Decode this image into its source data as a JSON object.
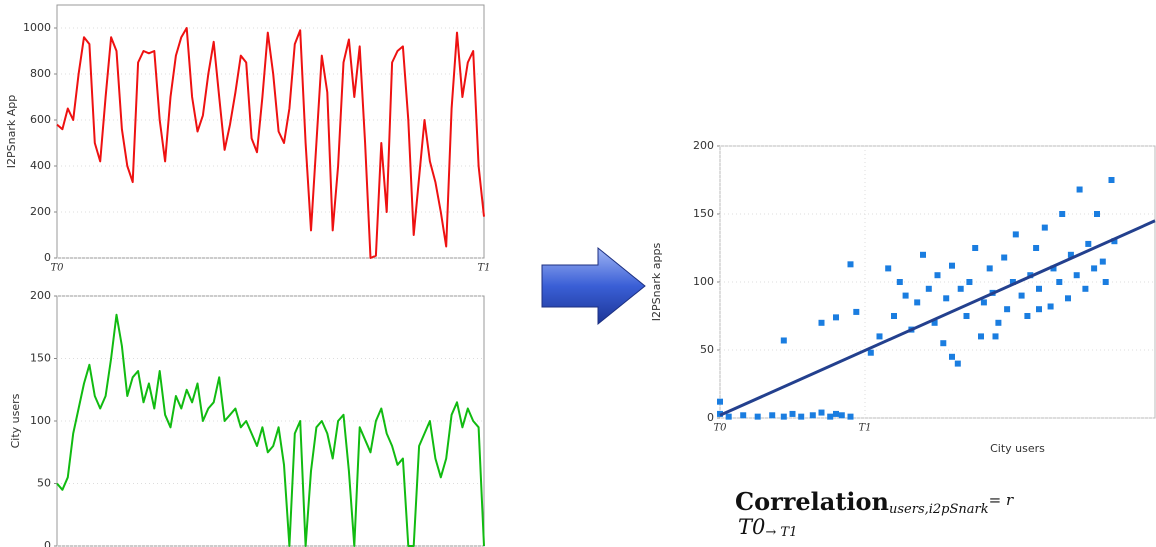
{
  "chart_data": [
    {
      "type": "line",
      "ylabel": "I2PSnark App",
      "color": "#ee1111",
      "ylim": [
        0,
        1100
      ],
      "yticks": [
        0,
        200,
        400,
        600,
        800,
        1000
      ],
      "grid": true,
      "categories": [
        "T0",
        null,
        null,
        null,
        null,
        null,
        null,
        null,
        null,
        null,
        null,
        null,
        null,
        null,
        null,
        null,
        null,
        null,
        null,
        null,
        null,
        null,
        null,
        null,
        null,
        null,
        null,
        null,
        null,
        null,
        null,
        null,
        null,
        null,
        null,
        null,
        null,
        null,
        null,
        null,
        null,
        null,
        null,
        null,
        null,
        null,
        null,
        null,
        null,
        null,
        null,
        null,
        null,
        null,
        null,
        null,
        null,
        null,
        null,
        null,
        null,
        null,
        null,
        null,
        null,
        null,
        null,
        null,
        null,
        null,
        null,
        null,
        null,
        null,
        null,
        null,
        null,
        null,
        null,
        "T1"
      ],
      "values": [
        580,
        560,
        650,
        600,
        800,
        960,
        930,
        500,
        420,
        700,
        960,
        900,
        560,
        400,
        330,
        850,
        900,
        890,
        900,
        600,
        420,
        700,
        880,
        960,
        1000,
        700,
        550,
        620,
        800,
        940,
        700,
        470,
        580,
        720,
        880,
        850,
        520,
        460,
        700,
        980,
        800,
        550,
        500,
        650,
        930,
        990,
        500,
        120,
        500,
        880,
        720,
        120,
        400,
        850,
        950,
        700,
        920,
        500,
        0,
        10,
        500,
        200,
        850,
        900,
        920,
        600,
        100,
        350,
        600,
        420,
        330,
        200,
        50,
        650,
        980,
        700,
        850,
        900,
        400,
        180
      ]
    },
    {
      "type": "line",
      "ylabel": "City users",
      "color": "#11bb11",
      "ylim": [
        0,
        200
      ],
      "yticks": [
        0,
        50,
        100,
        150,
        200
      ],
      "grid": true,
      "categories": [
        "T0",
        null,
        null,
        null,
        null,
        null,
        null,
        null,
        null,
        null,
        null,
        null,
        null,
        null,
        null,
        null,
        null,
        null,
        null,
        null,
        null,
        null,
        null,
        null,
        null,
        null,
        null,
        null,
        null,
        null,
        null,
        null,
        null,
        null,
        null,
        null,
        null,
        null,
        null,
        null,
        null,
        null,
        null,
        null,
        null,
        null,
        null,
        null,
        null,
        null,
        null,
        null,
        null,
        null,
        null,
        null,
        null,
        null,
        null,
        null,
        null,
        null,
        null,
        null,
        null,
        null,
        null,
        null,
        null,
        null,
        null,
        null,
        null,
        null,
        null,
        null,
        null,
        null,
        null,
        "T1"
      ],
      "values": [
        50,
        45,
        55,
        90,
        110,
        130,
        145,
        120,
        110,
        120,
        150,
        185,
        160,
        120,
        135,
        140,
        115,
        130,
        110,
        140,
        105,
        95,
        120,
        110,
        125,
        115,
        130,
        100,
        110,
        115,
        135,
        100,
        105,
        110,
        95,
        100,
        90,
        80,
        95,
        75,
        80,
        95,
        65,
        0,
        90,
        100,
        0,
        60,
        95,
        100,
        90,
        70,
        100,
        105,
        60,
        0,
        95,
        85,
        75,
        100,
        110,
        90,
        80,
        65,
        70,
        0,
        0,
        80,
        90,
        100,
        70,
        55,
        70,
        105,
        115,
        95,
        110,
        100,
        95,
        0
      ]
    },
    {
      "type": "scatter",
      "xlabel": "City users",
      "ylabel": "I2PSnark apps",
      "color": "#1a7de0",
      "xlim": [
        0,
        150
      ],
      "ylim": [
        0,
        200
      ],
      "xticks": [
        {
          "value": 0,
          "label": "T0"
        },
        {
          "value": 50,
          "label": "T1"
        }
      ],
      "yticks": [
        0,
        50,
        100,
        150,
        200
      ],
      "grid": true,
      "x": [
        0,
        0,
        3,
        8,
        13,
        18,
        22,
        25,
        28,
        32,
        35,
        38,
        40,
        42,
        45,
        22,
        35,
        40,
        45,
        47,
        52,
        55,
        58,
        60,
        62,
        64,
        66,
        68,
        70,
        72,
        74,
        75,
        77,
        78,
        80,
        82,
        83,
        85,
        86,
        88,
        90,
        91,
        93,
        94,
        96,
        98,
        99,
        101,
        102,
        104,
        106,
        107,
        109,
        110,
        112,
        114,
        115,
        117,
        118,
        120,
        121,
        123,
        124,
        126,
        127,
        129,
        130,
        132,
        133,
        135,
        136,
        80,
        95,
        110
      ],
      "values": [
        3,
        12,
        1,
        2,
        1,
        2,
        1,
        3,
        1,
        2,
        4,
        1,
        3,
        2,
        1,
        57,
        70,
        74,
        113,
        78,
        48,
        60,
        110,
        75,
        100,
        90,
        65,
        85,
        120,
        95,
        70,
        105,
        55,
        88,
        112,
        40,
        95,
        75,
        100,
        125,
        60,
        85,
        110,
        92,
        70,
        118,
        80,
        100,
        135,
        90,
        75,
        105,
        125,
        95,
        140,
        82,
        110,
        100,
        150,
        88,
        120,
        105,
        168,
        95,
        128,
        110,
        150,
        115,
        100,
        175,
        130,
        45,
        60,
        80
      ],
      "fit": {
        "x": [
          0,
          150
        ],
        "values": [
          2,
          145
        ],
        "color": "#23408e"
      }
    },
    {
      "type": "formula",
      "word": "Correlation",
      "subscript": "users,i2pSnark",
      "rhs": "= r",
      "from": "T0",
      "to": "→ T1"
    }
  ]
}
